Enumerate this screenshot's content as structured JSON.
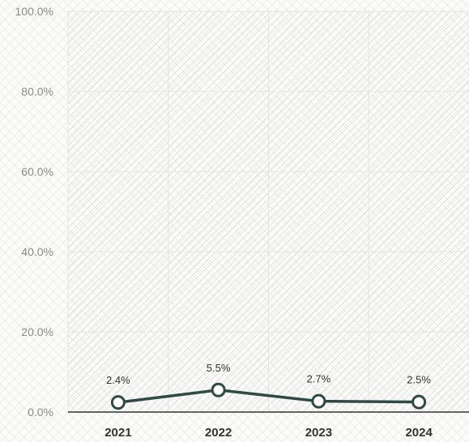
{
  "chart_data": {
    "type": "line",
    "title": "",
    "xlabel": "",
    "ylabel": "",
    "categories": [
      "2021",
      "2022",
      "2023",
      "2024"
    ],
    "series": [
      {
        "values": [
          2.4,
          5.5,
          2.7,
          2.5
        ],
        "labels": [
          "2.4%",
          "5.5%",
          "2.7%",
          "2.5%"
        ]
      }
    ],
    "ylim": [
      0,
      100
    ],
    "yticks": [
      0,
      20,
      40,
      60,
      80,
      100
    ],
    "ytick_labels": [
      "0.0%",
      "20.0%",
      "40.0%",
      "60.0%",
      "80.0%",
      "100.0%"
    ],
    "grid": true,
    "legend": "none",
    "colors": {
      "line": "#2f4a45",
      "marker_fill": "#ffffff",
      "axis": "#333333",
      "grid": "#e4e4e4",
      "hatch": "#dcdcdc",
      "background": "#fbfbfa"
    }
  }
}
